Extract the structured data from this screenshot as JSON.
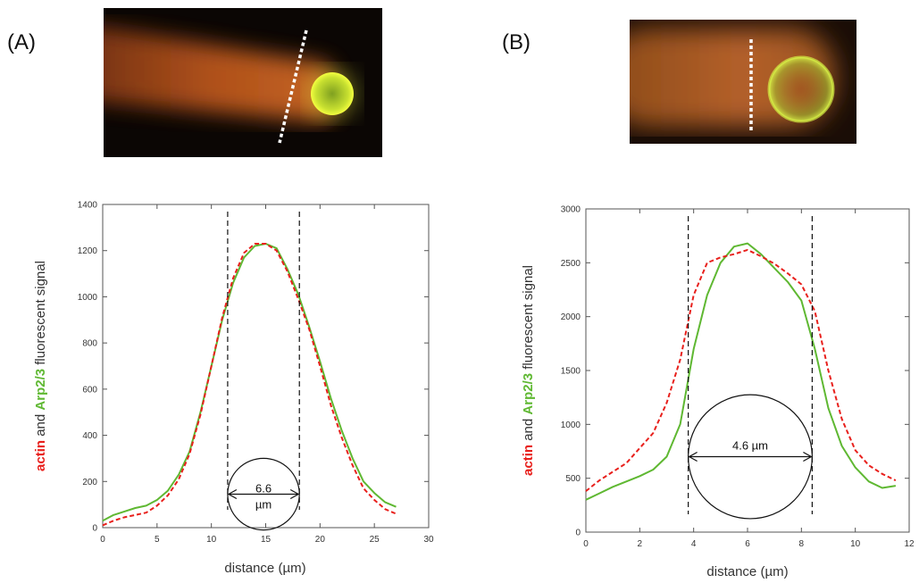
{
  "panels": [
    {
      "label": "(A)",
      "accent": "#e8f020"
    },
    {
      "label": "(B)",
      "accent": "#c9e63a"
    }
  ],
  "colors": {
    "actin": "#e8201c",
    "arp": "#5fb832",
    "text": "#333333"
  },
  "chart_data": [
    {
      "type": "line",
      "title": "",
      "xlabel": "distance (µm)",
      "ylabel_parts": [
        "actin",
        " and ",
        "Arp2/3",
        " fluorescent signal"
      ],
      "xlim": [
        0,
        30
      ],
      "ylim": [
        0,
        1400
      ],
      "xticks": [
        0,
        5,
        10,
        15,
        20,
        25,
        30
      ],
      "yticks": [
        0,
        200,
        400,
        600,
        800,
        1000,
        1200,
        1400
      ],
      "grid": false,
      "legend": "none",
      "series": [
        {
          "color": "#5fb832",
          "style": "solid",
          "x": [
            0,
            1,
            2,
            3,
            4,
            5,
            6,
            7,
            8,
            9,
            10,
            11,
            12,
            13,
            14,
            15,
            16,
            17,
            18,
            19,
            20,
            21,
            22,
            23,
            24,
            25,
            26,
            27
          ],
          "y": [
            30,
            55,
            70,
            85,
            95,
            120,
            160,
            230,
            330,
            500,
            700,
            900,
            1060,
            1170,
            1220,
            1230,
            1210,
            1120,
            1010,
            870,
            720,
            560,
            420,
            300,
            200,
            150,
            110,
            90
          ]
        },
        {
          "color": "#e8201c",
          "style": "dashed",
          "x": [
            0,
            1,
            2,
            3,
            4,
            5,
            6,
            7,
            8,
            9,
            10,
            11,
            12,
            13,
            14,
            15,
            16,
            17,
            18,
            19,
            20,
            21,
            22,
            23,
            24,
            25,
            26,
            27
          ],
          "y": [
            10,
            30,
            45,
            55,
            65,
            95,
            140,
            210,
            320,
            490,
            700,
            910,
            1080,
            1190,
            1230,
            1230,
            1200,
            1110,
            990,
            860,
            700,
            530,
            390,
            270,
            170,
            120,
            80,
            60
          ]
        }
      ],
      "vlines": [
        11.5,
        18.1
      ],
      "bead": {
        "center": [
          14.8,
          145
        ],
        "label_lines": [
          "6.6",
          "µm"
        ]
      }
    },
    {
      "type": "line",
      "title": "",
      "xlabel": "distance (µm)",
      "ylabel_parts": [
        "actin",
        " and ",
        "Arp2/3",
        " fluorescent signal"
      ],
      "xlim": [
        0,
        12
      ],
      "ylim": [
        0,
        3000
      ],
      "xticks": [
        0,
        2,
        4,
        6,
        8,
        10,
        12
      ],
      "yticks": [
        0,
        500,
        1000,
        1500,
        2000,
        2500,
        3000
      ],
      "grid": false,
      "legend": "none",
      "series": [
        {
          "color": "#5fb832",
          "style": "solid",
          "x": [
            0,
            0.5,
            1,
            1.5,
            2,
            2.5,
            3,
            3.5,
            4,
            4.5,
            5,
            5.5,
            6,
            6.5,
            7,
            7.5,
            8,
            8.5,
            9,
            9.5,
            10,
            10.5,
            11,
            11.5
          ],
          "y": [
            300,
            360,
            420,
            470,
            520,
            580,
            700,
            1000,
            1700,
            2200,
            2500,
            2650,
            2680,
            2580,
            2450,
            2320,
            2150,
            1700,
            1150,
            800,
            600,
            470,
            410,
            430
          ]
        },
        {
          "color": "#e8201c",
          "style": "dashed",
          "x": [
            0,
            0.5,
            1,
            1.5,
            2,
            2.5,
            3,
            3.5,
            4,
            4.5,
            5,
            5.5,
            6,
            6.5,
            7,
            7.5,
            8,
            8.5,
            9,
            9.5,
            10,
            10.5,
            11,
            11.5
          ],
          "y": [
            380,
            480,
            560,
            640,
            780,
            920,
            1200,
            1600,
            2200,
            2500,
            2550,
            2580,
            2620,
            2560,
            2490,
            2400,
            2300,
            2050,
            1500,
            1050,
            760,
            620,
            540,
            480
          ]
        }
      ],
      "vlines": [
        3.8,
        8.4
      ],
      "bead": {
        "center": [
          6.1,
          700
        ],
        "label_lines": [
          "4.6 µm"
        ]
      }
    }
  ]
}
